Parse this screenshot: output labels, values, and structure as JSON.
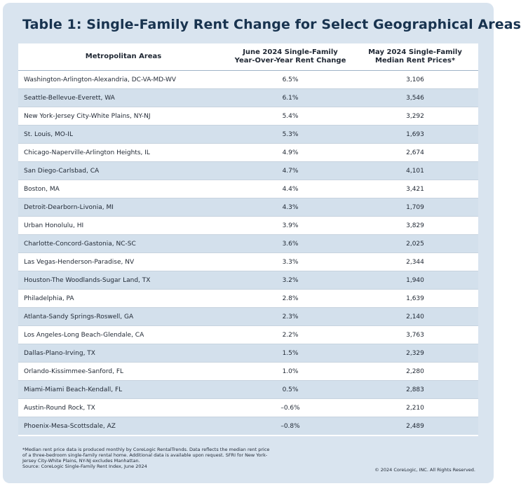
{
  "title": "Table 1: Single-Family Rent Change for Select Geographical Areas",
  "chart_data": {
    "type": "table",
    "columns": [
      "Metropolitan Areas",
      "June 2024 Single-Family Year-Over-Year Rent Change",
      "May 2024 Single-Family Median Rent Prices*"
    ],
    "column_header_lines": [
      [
        "Metropolitan Areas"
      ],
      [
        "June 2024 Single-Family",
        "Year-Over-Year Rent Change"
      ],
      [
        "May 2024 Single-Family",
        "Median Rent Prices*"
      ]
    ],
    "rows": [
      [
        "Washington-Arlington-Alexandria, DC-VA-MD-WV",
        "6.5%",
        "3,106"
      ],
      [
        "Seattle-Bellevue-Everett, WA",
        "6.1%",
        "3,546"
      ],
      [
        "New York-Jersey City-White Plains, NY-NJ",
        "5.4%",
        "3,292"
      ],
      [
        "St. Louis, MO-IL",
        "5.3%",
        "1,693"
      ],
      [
        "Chicago-Naperville-Arlington Heights, IL",
        "4.9%",
        "2,674"
      ],
      [
        "San Diego-Carlsbad, CA",
        "4.7%",
        "4,101"
      ],
      [
        "Boston, MA",
        "4.4%",
        "3,421"
      ],
      [
        "Detroit-Dearborn-Livonia, MI",
        "4.3%",
        "1,709"
      ],
      [
        "Urban Honolulu, HI",
        "3.9%",
        "3,829"
      ],
      [
        "Charlotte-Concord-Gastonia, NC-SC",
        "3.6%",
        "2,025"
      ],
      [
        "Las Vegas-Henderson-Paradise, NV",
        "3.3%",
        "2,344"
      ],
      [
        "Houston-The Woodlands-Sugar Land, TX",
        "3.2%",
        "1,940"
      ],
      [
        "Philadelphia, PA",
        "2.8%",
        "1,639"
      ],
      [
        "Atlanta-Sandy Springs-Roswell, GA",
        "2.3%",
        "2,140"
      ],
      [
        "Los Angeles-Long Beach-Glendale, CA",
        "2.2%",
        "3,763"
      ],
      [
        "Dallas-Plano-Irving, TX",
        "1.5%",
        "2,329"
      ],
      [
        "Orlando-Kissimmee-Sanford, FL",
        "1.0%",
        "2,280"
      ],
      [
        "Miami-Miami Beach-Kendall, FL",
        "0.5%",
        "2,883"
      ],
      [
        "Austin-Round Rock, TX",
        "–0.6%",
        "2,210"
      ],
      [
        "Phoenix-Mesa-Scottsdale, AZ",
        "–0.8%",
        "2,489"
      ]
    ]
  },
  "footnote_lines": [
    "*Median rent price data is produced monthly by CoreLogic RentalTrends. Data reflects the median rent price",
    "of a three-bedroom single-family rental home. Additional data is available upon request. SFRI for New York-",
    "Jersey City-White Plains, NY-NJ excludes Manhattan.",
    "Source: CoreLogic Single-Family Rent Index, June 2024"
  ],
  "copyright": "© 2024 CoreLogic, INC. All Rights Reserved.",
  "colors": {
    "background": "#d9e4ef",
    "title": "#18334f",
    "stripe": "#d3e0ec",
    "table_background": "#ffffff"
  }
}
